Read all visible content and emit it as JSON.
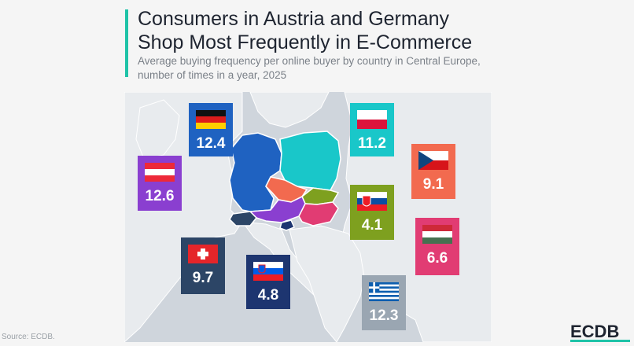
{
  "header": {
    "title_line1": "Consumers in Austria and Germany",
    "title_line2": "Shop Most Frequently in E-Commerce",
    "subtitle_line1": "Average buying frequency per online buyer by country in Central Europe,",
    "subtitle_line2": "number of times in a year, 2025"
  },
  "colors": {
    "accent": "#1fc3a8",
    "germany": "#1f62c1",
    "poland": "#19c7c9",
    "czechia": "#f26a4f",
    "austria": "#8a3fd0",
    "slovakia": "#7ea01f",
    "hungary": "#e13c73",
    "switzerland": "#2c4566",
    "slovenia": "#1d3570",
    "greece": "#9aa6b2",
    "land": "#e8ebee",
    "sea": "#cfd5dc"
  },
  "map_data": {
    "countries": [
      {
        "id": "germany",
        "label": "12.4",
        "flag": "germany-flag-icon"
      },
      {
        "id": "poland",
        "label": "11.2",
        "flag": "poland-flag-icon"
      },
      {
        "id": "austria",
        "label": "12.6",
        "flag": "austria-flag-icon"
      },
      {
        "id": "czechia",
        "label": "9.1",
        "flag": "czechia-flag-icon"
      },
      {
        "id": "slovakia",
        "label": "4.1",
        "flag": "slovakia-flag-icon"
      },
      {
        "id": "hungary",
        "label": "6.6",
        "flag": "hungary-flag-icon"
      },
      {
        "id": "switzerland",
        "label": "9.7",
        "flag": "switzerland-flag-icon"
      },
      {
        "id": "slovenia",
        "label": "4.8",
        "flag": "slovenia-flag-icon"
      },
      {
        "id": "greece",
        "label": "12.3",
        "flag": "greece-flag-icon"
      }
    ]
  },
  "footer": {
    "source": "Source: ECDB.",
    "logo": "ECDB"
  }
}
